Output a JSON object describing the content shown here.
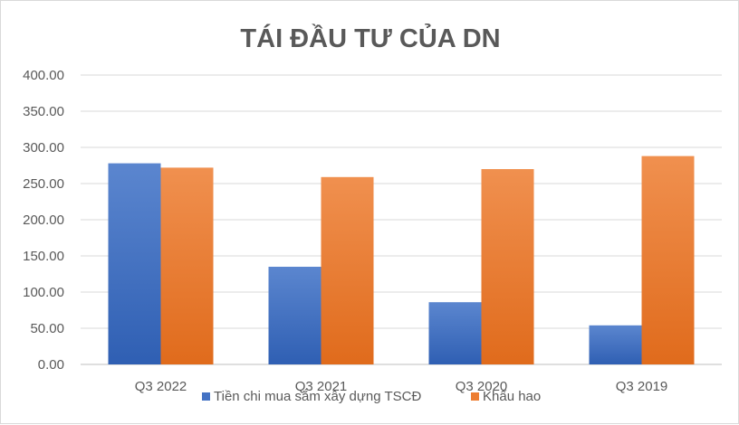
{
  "colors": {
    "series_1": "#4472C4",
    "series_2": "#ED7D31",
    "grid": "#d9d9d9",
    "axis": "#bfbfbf",
    "text": "#595959"
  },
  "chart_data": {
    "type": "bar",
    "title": "TÁI ĐẦU TƯ CỦA DN",
    "xlabel": "",
    "ylabel": "",
    "categories": [
      "Q3 2022",
      "Q3 2021",
      "Q3 2020",
      "Q3 2019"
    ],
    "series": [
      {
        "name": "Tiền chi mua sắm xây dựng TSCĐ",
        "values": [
          278,
          135,
          86,
          54
        ]
      },
      {
        "name": "Khấu hao",
        "values": [
          272,
          259,
          270,
          288
        ]
      }
    ],
    "ylim": [
      0,
      400
    ],
    "yticks": [
      "0.00",
      "50.00",
      "100.00",
      "150.00",
      "200.00",
      "250.00",
      "300.00",
      "350.00",
      "400.00"
    ],
    "grid": true,
    "legend_position": "bottom"
  }
}
